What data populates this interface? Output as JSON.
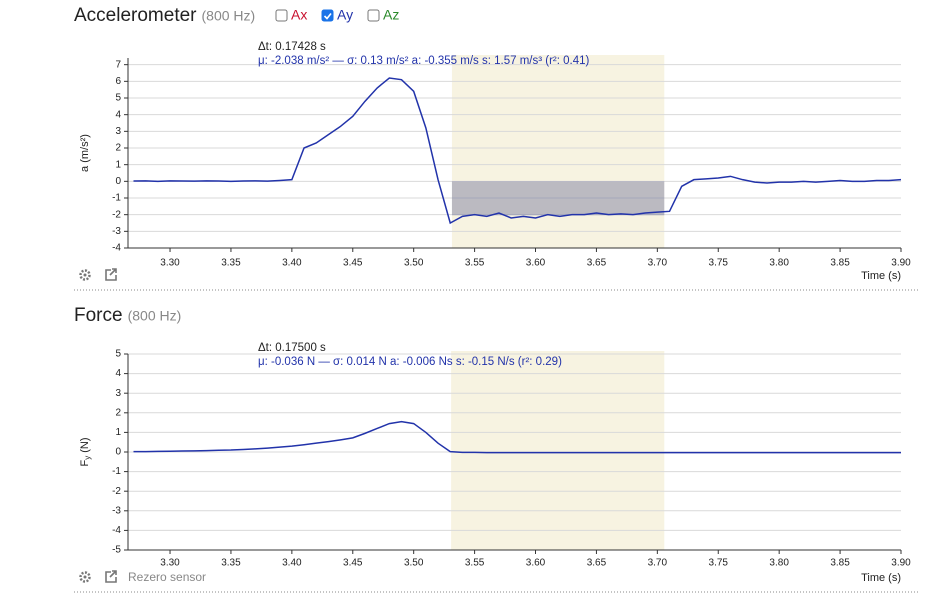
{
  "chart_data": [
    {
      "type": "line",
      "title": "Accelerometer",
      "subtitle": "(800 Hz)",
      "channels": [
        {
          "name": "Ax",
          "color": "#c8102e",
          "checked": false
        },
        {
          "name": "Ay",
          "color": "#2233aa",
          "checked": true
        },
        {
          "name": "Az",
          "color": "#2a8a2a",
          "checked": false
        }
      ],
      "stats": [
        "Δt: 0.17428 s",
        "μ: -2.038 m/s² — σ: 0.13 m/s²   a: -0.355 m/s   s: 1.57 m/s³ (r²: 0.41)"
      ],
      "y_label": "a (m/s²)",
      "x_label": "Time (s)",
      "color": "#2233aa",
      "grid": true,
      "x": [
        3.27,
        3.28,
        3.29,
        3.3,
        3.31,
        3.32,
        3.33,
        3.34,
        3.35,
        3.36,
        3.37,
        3.38,
        3.39,
        3.4,
        3.41,
        3.42,
        3.43,
        3.44,
        3.45,
        3.46,
        3.47,
        3.48,
        3.49,
        3.5,
        3.51,
        3.52,
        3.53,
        3.54,
        3.55,
        3.56,
        3.57,
        3.58,
        3.59,
        3.6,
        3.61,
        3.62,
        3.63,
        3.64,
        3.65,
        3.66,
        3.67,
        3.68,
        3.69,
        3.7,
        3.71,
        3.72,
        3.73,
        3.74,
        3.75,
        3.76,
        3.77,
        3.78,
        3.79,
        3.8,
        3.81,
        3.82,
        3.83,
        3.84,
        3.85,
        3.86,
        3.87,
        3.88,
        3.89,
        3.9
      ],
      "values": [
        0.02,
        0.03,
        0.0,
        0.03,
        0.02,
        0.01,
        0.03,
        0.02,
        0.0,
        0.02,
        0.03,
        0.01,
        0.05,
        0.1,
        2.0,
        2.3,
        2.8,
        3.3,
        3.9,
        4.8,
        5.6,
        6.2,
        6.1,
        5.4,
        3.2,
        0.1,
        -2.5,
        -2.1,
        -2.0,
        -2.1,
        -1.9,
        -2.2,
        -2.1,
        -2.2,
        -2.0,
        -2.1,
        -2.0,
        -2.0,
        -1.9,
        -2.0,
        -1.95,
        -2.0,
        -1.9,
        -1.85,
        -1.8,
        -0.3,
        0.1,
        0.15,
        0.2,
        0.3,
        0.1,
        -0.05,
        -0.1,
        -0.05,
        -0.05,
        0.0,
        -0.05,
        0.0,
        0.05,
        0.0,
        0.0,
        0.05,
        0.05,
        0.1
      ],
      "selection": {
        "start": 3.5314,
        "end": 3.7057,
        "mean": -2.038
      },
      "xlim": [
        3.2655,
        3.9
      ],
      "ylim": [
        -4,
        7.4
      ],
      "xticks": [
        {
          "value": 3.3,
          "label": "3.30"
        },
        3.35,
        {
          "value": 3.4,
          "label": "3.40"
        },
        3.45,
        {
          "value": 3.5,
          "label": "3.50"
        },
        3.55,
        {
          "value": 3.6,
          "label": "3.60"
        },
        3.65,
        {
          "value": 3.7,
          "label": "3.70"
        },
        3.75,
        {
          "value": 3.8,
          "label": "3.80"
        },
        3.85,
        {
          "value": 3.9,
          "label": "3.90"
        }
      ],
      "yticks": [
        -4,
        -3,
        -2,
        -1,
        0,
        1,
        2,
        3,
        4,
        5,
        6,
        7
      ]
    },
    {
      "type": "line",
      "title": "Force",
      "subtitle": "(800 Hz)",
      "stats": [
        "Δt: 0.17500 s",
        "μ: -0.036 N — σ: 0.014 N   a: -0.006 Ns   s: -0.15 N/s (r²: 0.29)"
      ],
      "y_label": "F",
      "y_label_sub": "y",
      "y_label_unit": "(N)",
      "x_label": "Time (s)",
      "action": "Rezero sensor",
      "color": "#2233aa",
      "grid": true,
      "x": [
        3.27,
        3.28,
        3.29,
        3.3,
        3.31,
        3.32,
        3.33,
        3.34,
        3.35,
        3.36,
        3.37,
        3.38,
        3.39,
        3.4,
        3.41,
        3.42,
        3.43,
        3.44,
        3.45,
        3.46,
        3.47,
        3.48,
        3.49,
        3.5,
        3.51,
        3.52,
        3.53,
        3.54,
        3.55,
        3.56,
        3.57,
        3.58,
        3.59,
        3.6,
        3.61,
        3.62,
        3.63,
        3.64,
        3.65,
        3.66,
        3.67,
        3.68,
        3.69,
        3.7,
        3.71,
        3.72,
        3.73,
        3.74,
        3.75,
        3.76,
        3.77,
        3.78,
        3.79,
        3.8,
        3.81,
        3.82,
        3.83,
        3.84,
        3.85,
        3.86,
        3.87,
        3.88,
        3.89,
        3.9
      ],
      "values": [
        0.02,
        0.02,
        0.03,
        0.04,
        0.05,
        0.06,
        0.07,
        0.09,
        0.1,
        0.13,
        0.16,
        0.2,
        0.25,
        0.3,
        0.37,
        0.45,
        0.53,
        0.62,
        0.72,
        0.95,
        1.2,
        1.45,
        1.55,
        1.45,
        1.0,
        0.45,
        0.02,
        -0.02,
        -0.02,
        -0.03,
        -0.03,
        -0.03,
        -0.03,
        -0.03,
        -0.03,
        -0.03,
        -0.03,
        -0.03,
        -0.03,
        -0.03,
        -0.03,
        -0.03,
        -0.03,
        -0.03,
        -0.03,
        -0.03,
        -0.03,
        -0.03,
        -0.03,
        -0.03,
        -0.03,
        -0.03,
        -0.03,
        -0.03,
        -0.03,
        -0.03,
        -0.03,
        -0.03,
        -0.03,
        -0.03,
        -0.03,
        -0.03,
        -0.03,
        -0.03
      ],
      "selection": {
        "start": 3.5307,
        "end": 3.7057
      },
      "xlim": [
        3.2655,
        3.9
      ],
      "ylim": [
        -5,
        5
      ],
      "xticks": [
        {
          "value": 3.3,
          "label": "3.30"
        },
        3.35,
        {
          "value": 3.4,
          "label": "3.40"
        },
        3.45,
        {
          "value": 3.5,
          "label": "3.50"
        },
        3.55,
        {
          "value": 3.6,
          "label": "3.60"
        },
        3.65,
        {
          "value": 3.7,
          "label": "3.70"
        },
        3.75,
        {
          "value": 3.8,
          "label": "3.80"
        },
        3.85,
        {
          "value": 3.9,
          "label": "3.90"
        }
      ],
      "yticks": [
        -5,
        -4,
        -3,
        -2,
        -1,
        0,
        1,
        2,
        3,
        4,
        5
      ]
    }
  ]
}
